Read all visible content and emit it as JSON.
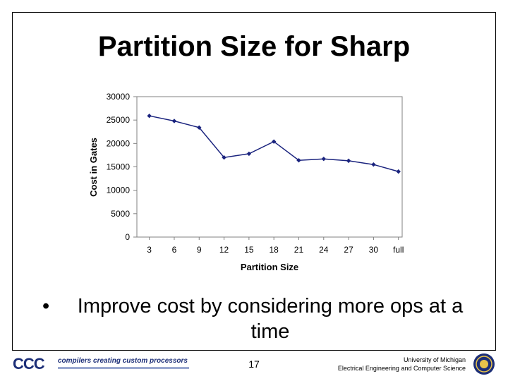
{
  "slide": {
    "title": "Partition Size for Sharp",
    "bullet_marker": "•",
    "bullet_text": "Improve cost by considering more ops at a time",
    "page_number": "17",
    "footer_left_logo": "CCC",
    "footer_left_text": "compilers creating custom processors",
    "footer_right_line1": "University of Michigan",
    "footer_right_line2": "Electrical Engineering and Computer Science"
  },
  "chart_data": {
    "type": "line",
    "title": "",
    "xlabel": "Partition Size",
    "ylabel": "Cost in Gates",
    "categories": [
      "3",
      "6",
      "9",
      "12",
      "15",
      "18",
      "21",
      "24",
      "27",
      "30",
      "full"
    ],
    "series": [
      {
        "values": [
          25900,
          24800,
          23400,
          17000,
          17800,
          20400,
          16400,
          16700,
          16300,
          15500,
          14000
        ]
      }
    ],
    "ylim": [
      0,
      30000
    ],
    "yticks": [
      0,
      5000,
      10000,
      15000,
      20000,
      25000,
      30000
    ],
    "grid": false,
    "legend": "none",
    "colors": {
      "line": "#1a237e",
      "marker": "#1a237e",
      "axis": "#808080"
    }
  }
}
